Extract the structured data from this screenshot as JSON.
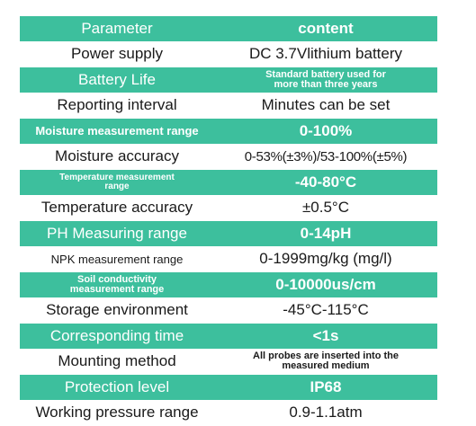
{
  "rows": [
    {
      "param": "Parameter",
      "content": "content",
      "style": "teal"
    },
    {
      "param": "Power supply",
      "content": "DC 3.7Vlithium battery",
      "style": "white"
    },
    {
      "param": "Battery Life",
      "content": "Standard battery used for\nmore than three years",
      "style": "teal"
    },
    {
      "param": "Reporting interval",
      "content": "Minutes can be set",
      "style": "white"
    },
    {
      "param": "Moisture measurement range",
      "content": "0-100%",
      "style": "teal"
    },
    {
      "param": "Moisture accuracy",
      "content": "0-53%(±3%)/53-100%(±5%)",
      "style": "white"
    },
    {
      "param": "Temperature measurement\nrange",
      "content": "-40-80°C",
      "style": "teal"
    },
    {
      "param": "Temperature accuracy",
      "content": "±0.5°C",
      "style": "white"
    },
    {
      "param": "PH Measuring range",
      "content": "0-14pH",
      "style": "teal"
    },
    {
      "param": "NPK measurement range",
      "content": "0-1999mg/kg (mg/l)",
      "style": "white"
    },
    {
      "param": "Soil conductivity\nmeasurement range",
      "content": "0-10000us/cm",
      "style": "teal"
    },
    {
      "param": "Storage environment",
      "content": "-45°C-115°C",
      "style": "white"
    },
    {
      "param": "Corresponding time",
      "content": "<1s",
      "style": "teal"
    },
    {
      "param": "Mounting method",
      "content": "All probes are inserted into the\nmeasured medium",
      "style": "white"
    },
    {
      "param": "Protection level",
      "content": "IP68",
      "style": "teal"
    },
    {
      "param": "Working pressure range",
      "content": "0.9-1.1atm",
      "style": "white"
    }
  ],
  "colors": {
    "teal": "#3dbf9d",
    "white": "#ffffff",
    "text_dark": "#1a1a1a"
  }
}
